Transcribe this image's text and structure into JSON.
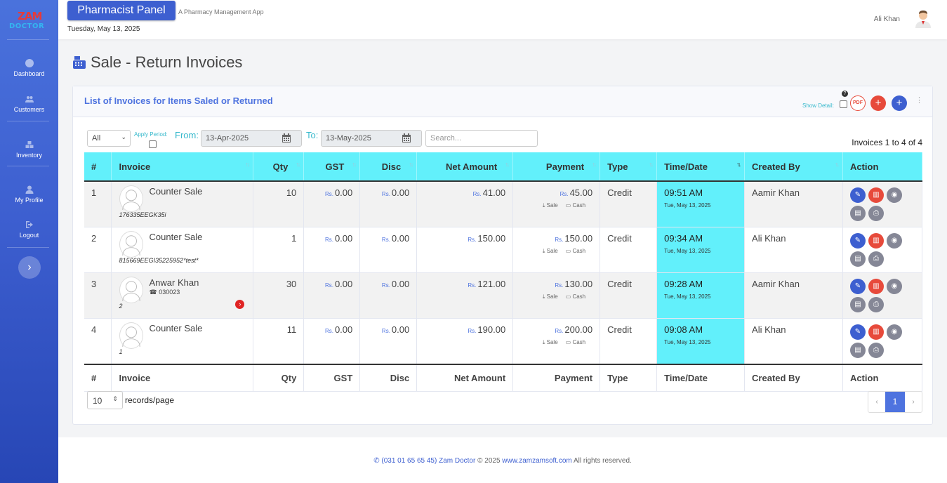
{
  "app": {
    "logo_top": "ZAM",
    "logo_bottom": "DOCTOR",
    "panel_title": "Pharmacist Panel",
    "panel_subtitle": "A Pharmacy Management App",
    "date": "Tuesday, May 13, 2025",
    "user_name": "Ali Khan"
  },
  "sidebar": {
    "items": [
      {
        "label": "Dashboard",
        "icon": "gauge-icon"
      },
      {
        "label": "Customers",
        "icon": "users-icon"
      },
      {
        "label": "Inventory",
        "icon": "boxes-icon"
      },
      {
        "label": "My Profile",
        "icon": "user-icon"
      },
      {
        "label": "Logout",
        "icon": "logout-icon"
      }
    ],
    "collapse_glyph": "›"
  },
  "page": {
    "title": "Sale - Return Invoices"
  },
  "card": {
    "title": "List of Invoices for Items Saled or Returned",
    "show_detail": "Show Detail:",
    "help": "?",
    "pdf": "PDF",
    "add_red": "+",
    "add_blue": "+"
  },
  "filters": {
    "type_select": "All",
    "apply_period": "Apply Period:",
    "from_label": "From:",
    "from_value": "13-Apr-2025",
    "to_label": "To:",
    "to_value": "13-May-2025",
    "search_placeholder": "Search...",
    "count_text": "Invoices 1 to 4 of 4"
  },
  "table": {
    "headers": [
      "#",
      "Invoice",
      "Qty",
      "GST",
      "Disc",
      "Net Amount",
      "Payment",
      "Type",
      "Time/Date",
      "Created By",
      "Action"
    ],
    "currency": "Rs.",
    "rows": [
      {
        "no": "1",
        "customer": "Counter Sale",
        "phone": "",
        "code": "176335EEGK35i",
        "qty": "10",
        "gst": "0.00",
        "disc": "0.00",
        "net": "41.00",
        "payment": "45.00",
        "sale": "Sale",
        "cash": "Cash",
        "type": "Credit",
        "time": "09:51 AM",
        "date": "Tue, May 13, 2025",
        "created_by": "Aamir Khan"
      },
      {
        "no": "2",
        "customer": "Counter Sale",
        "phone": "",
        "code": "815669EEGI35225952*test*",
        "qty": "1",
        "gst": "0.00",
        "disc": "0.00",
        "net": "150.00",
        "payment": "150.00",
        "sale": "Sale",
        "cash": "Cash",
        "type": "Credit",
        "time": "09:34 AM",
        "date": "Tue, May 13, 2025",
        "created_by": "Ali Khan"
      },
      {
        "no": "3",
        "customer": "Anwar Khan",
        "phone": "030023",
        "code": "2",
        "qty": "30",
        "gst": "0.00",
        "disc": "0.00",
        "net": "121.00",
        "payment": "130.00",
        "sale": "Sale",
        "cash": "Cash",
        "type": "Credit",
        "time": "09:28 AM",
        "date": "Tue, May 13, 2025",
        "created_by": "Aamir Khan"
      },
      {
        "no": "4",
        "customer": "Counter Sale",
        "phone": "",
        "code": "1",
        "qty": "11",
        "gst": "0.00",
        "disc": "0.00",
        "net": "190.00",
        "payment": "200.00",
        "sale": "Sale",
        "cash": "Cash",
        "type": "Credit",
        "time": "09:08 AM",
        "date": "Tue, May 13, 2025",
        "created_by": "Ali Khan"
      }
    ]
  },
  "pagination": {
    "per_page": "10",
    "per_page_label": "records/page",
    "prev": "‹",
    "current": "1",
    "next": "›"
  },
  "footer": {
    "phone": "(031 01 65 65 45) Zam Doctor",
    "copyright": "© 2025",
    "site": "www.zamzamsoft.com",
    "rights": "All rights reserved."
  },
  "colors": {
    "sidebar": "#3d5fd0",
    "accent": "#4e73df",
    "highlight": "#62f0fb",
    "danger": "#e74a3b",
    "muted": "#858796"
  }
}
